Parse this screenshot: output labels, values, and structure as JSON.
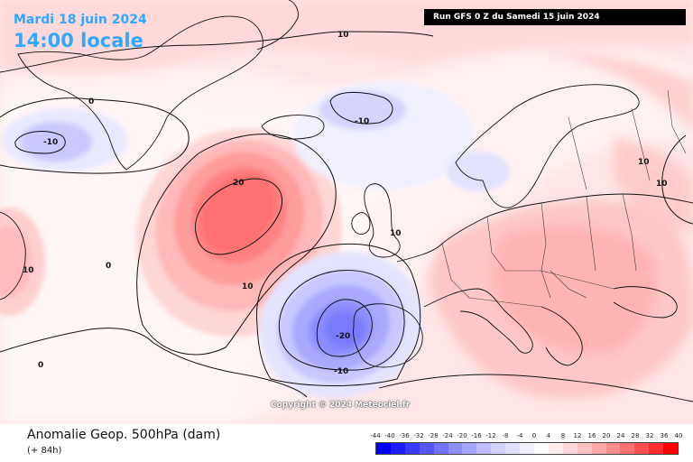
{
  "header": {
    "date": "Mardi 18 juin 2024",
    "time": "14:00 locale",
    "run": "Run GFS 0 Z du Samedi 15 juin 2024"
  },
  "copyright": "Copyright © 2024 Meteociel.fr",
  "footer": {
    "field": "Anomalie Geop. 500hPa (dam)",
    "lead": "(+ 84h)"
  },
  "legend": {
    "labels": [
      "-44",
      "-40",
      "-36",
      "-32",
      "-28",
      "-24",
      "-20",
      "-16",
      "-12",
      "-8",
      "-4",
      "0",
      "4",
      "8",
      "12",
      "16",
      "20",
      "24",
      "28",
      "32",
      "36",
      "40"
    ],
    "colors": [
      "#0000ff",
      "#1c1cff",
      "#3939ff",
      "#5656ff",
      "#7272ff",
      "#8e8eff",
      "#a6a6ff",
      "#bdbdff",
      "#d2d2ff",
      "#e2e2ff",
      "#f0f0ff",
      "#ffffff",
      "#ffecec",
      "#ffd9d9",
      "#ffc2c2",
      "#ffa8a8",
      "#ff8d8d",
      "#ff7070",
      "#ff5050",
      "#ff2e2e",
      "#ff0000"
    ]
  },
  "contour_labels": [
    "-10",
    "0",
    "-10",
    "20",
    "10",
    "10",
    "0",
    "-20",
    "-10",
    "10",
    "10",
    "10",
    "0",
    "10"
  ]
}
